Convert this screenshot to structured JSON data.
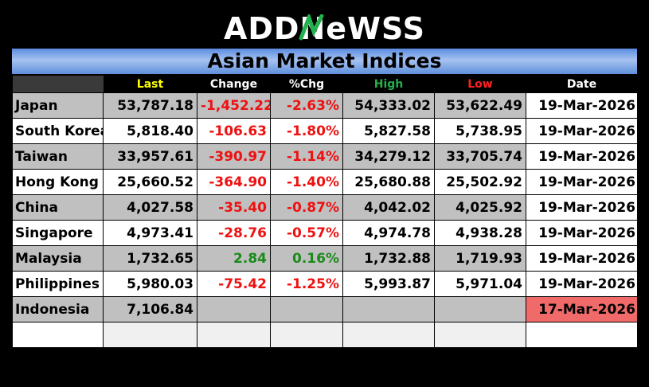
{
  "brand": {
    "logo_text": "ADDNEWSS",
    "logo_prefix": "ADD",
    "logo_suffix": "eWSS"
  },
  "table_title": "Asian Market Indices",
  "columns": [
    "",
    "Last",
    "Change",
    "%Chg",
    "High",
    "Low",
    "Date"
  ],
  "colors": {
    "last_header": "#ffff00",
    "high_header": "#22b14c",
    "low_header": "#ff2020",
    "negative": "#ee1111",
    "positive": "#1a8a1a",
    "stale_date": "#f06a6a"
  },
  "rows": [
    {
      "name": "Japan",
      "last": "53,787.18",
      "change": "-1,452.22",
      "pct": "-2.63%",
      "high": "54,333.02",
      "low": "53,622.49",
      "date": "19-Mar-2026"
    },
    {
      "name": "South Korea",
      "last": "5,818.40",
      "change": "-106.63",
      "pct": "-1.80%",
      "high": "5,827.58",
      "low": "5,738.95",
      "date": "19-Mar-2026"
    },
    {
      "name": "Taiwan",
      "last": "33,957.61",
      "change": "-390.97",
      "pct": "-1.14%",
      "high": "34,279.12",
      "low": "33,705.74",
      "date": "19-Mar-2026"
    },
    {
      "name": "Hong Kong",
      "last": "25,660.52",
      "change": "-364.90",
      "pct": "-1.40%",
      "high": "25,680.88",
      "low": "25,502.92",
      "date": "19-Mar-2026"
    },
    {
      "name": "China",
      "last": "4,027.58",
      "change": "-35.40",
      "pct": "-0.87%",
      "high": "4,042.02",
      "low": "4,025.92",
      "date": "19-Mar-2026"
    },
    {
      "name": "Singapore",
      "last": "4,973.41",
      "change": "-28.76",
      "pct": "-0.57%",
      "high": "4,974.78",
      "low": "4,938.28",
      "date": "19-Mar-2026"
    },
    {
      "name": "Malaysia",
      "last": "1,732.65",
      "change": "2.84",
      "pct": "0.16%",
      "high": "1,732.88",
      "low": "1,719.93",
      "date": "19-Mar-2026"
    },
    {
      "name": "Philippines",
      "last": "5,980.03",
      "change": "-75.42",
      "pct": "-1.25%",
      "high": "5,993.87",
      "low": "5,971.04",
      "date": "19-Mar-2026"
    },
    {
      "name": "Indonesia",
      "last": "7,106.84",
      "change": "",
      "pct": "",
      "high": "",
      "low": "",
      "date": "17-Mar-2026",
      "stale": true
    }
  ]
}
